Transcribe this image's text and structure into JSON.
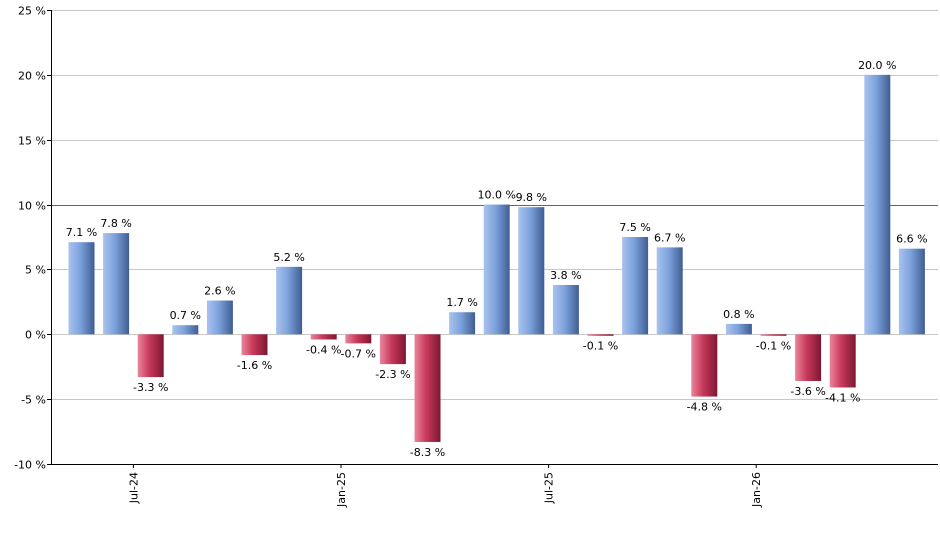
{
  "chart_data": {
    "type": "bar",
    "ylim": [
      -10,
      25
    ],
    "y_ticks": [
      {
        "value": 25,
        "label": "25 %"
      },
      {
        "value": 20,
        "label": "20 %"
      },
      {
        "value": 15,
        "label": "15 %"
      },
      {
        "value": 10,
        "label": "10 %"
      },
      {
        "value": 5,
        "label": "5 %"
      },
      {
        "value": 0,
        "label": "0 %"
      },
      {
        "value": -5,
        "label": "-5 %"
      },
      {
        "value": -10,
        "label": "-10 %"
      }
    ],
    "x_tick_labels": [
      {
        "after_bar": 2,
        "label": "Jul-24"
      },
      {
        "after_bar": 8,
        "label": "Jan-25"
      },
      {
        "after_bar": 14,
        "label": "Jul-25"
      },
      {
        "after_bar": 20,
        "label": "Jan-26"
      }
    ],
    "values": [
      7.1,
      7.8,
      -3.3,
      0.7,
      2.6,
      -1.6,
      5.2,
      -0.4,
      -0.7,
      -2.3,
      -8.3,
      1.7,
      10.0,
      9.8,
      3.8,
      -0.1,
      7.5,
      6.7,
      -4.8,
      0.8,
      -0.1,
      -3.6,
      -4.1,
      20.0,
      6.6
    ],
    "data_labels": [
      "7.1 %",
      "7.8 %",
      "-3.3 %",
      "0.7 %",
      "2.6 %",
      "-1.6 %",
      "5.2 %",
      "-0.4 %",
      "-0.7 %",
      "-2.3 %",
      "-8.3 %",
      "1.7 %",
      "10.0 %",
      "9.8 %",
      "3.8 %",
      "-0.1 %",
      "7.5 %",
      "6.7 %",
      "-4.8 %",
      "0.8 %",
      "-0.1 %",
      "-3.6 %",
      "-4.1 %",
      "20.0 %",
      "6.6 %"
    ],
    "reference_line": {
      "value": 10,
      "color": "#2e8b2e"
    },
    "grid": true,
    "colors": {
      "positive": "#7da2dc",
      "negative": "#c8385a",
      "grid": "#c8c8c8",
      "axis": "#000000"
    }
  }
}
